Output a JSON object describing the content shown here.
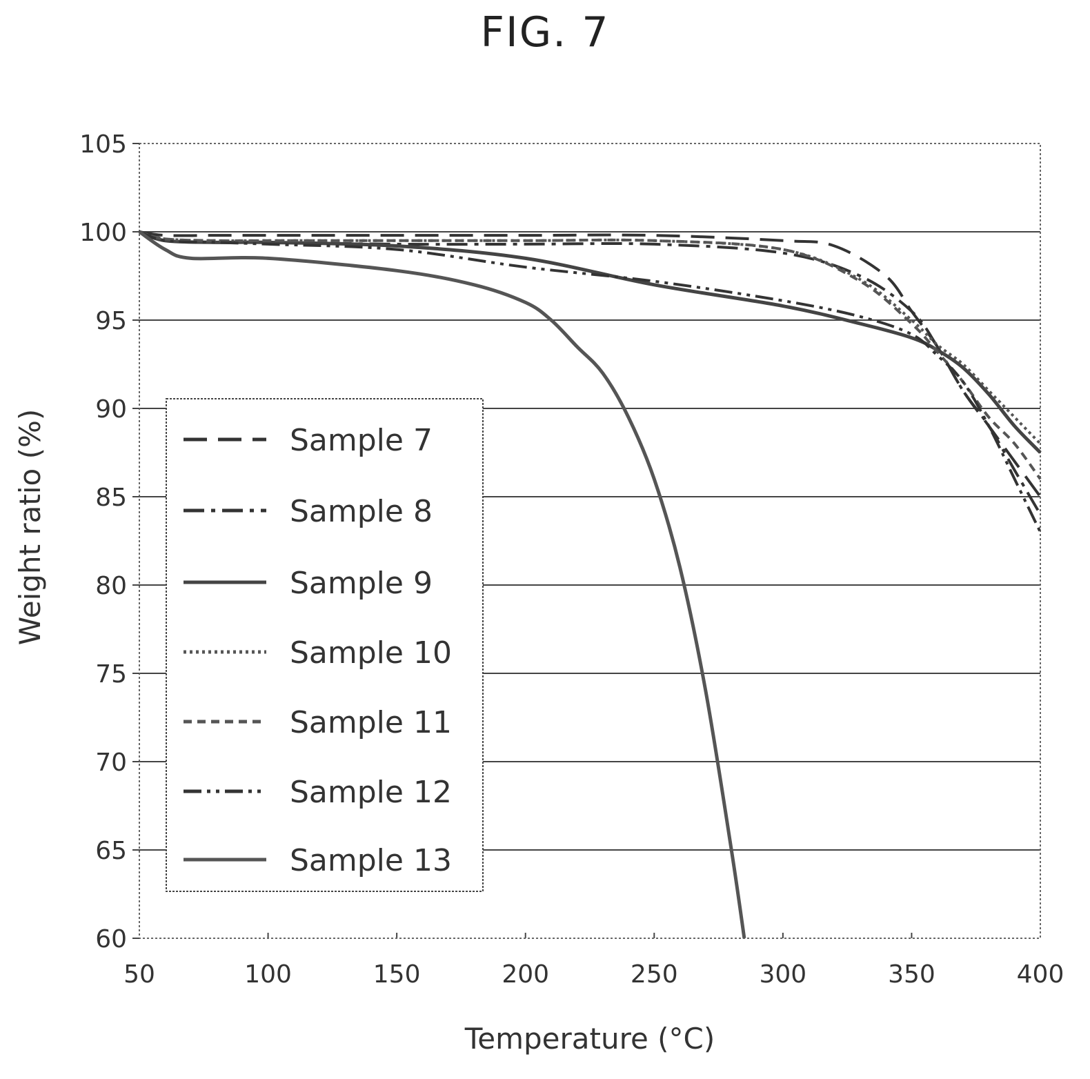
{
  "figure_label": "FIG. 7",
  "chart_data": {
    "type": "line",
    "title": "",
    "xlabel": "Temperature (°C)",
    "ylabel": "Weight ratio (%)",
    "xlim": [
      50,
      400
    ],
    "ylim": [
      60,
      105
    ],
    "xticks": [
      50,
      100,
      150,
      200,
      250,
      300,
      350,
      400
    ],
    "yticks": [
      60,
      65,
      70,
      75,
      80,
      85,
      90,
      95,
      100,
      105
    ],
    "grid": "horizontal",
    "legend_position": "left",
    "series": [
      {
        "name": "Sample 7",
        "dash": "dashed",
        "color": "#333333",
        "x": [
          50,
          60,
          80,
          100,
          150,
          200,
          250,
          300,
          320,
          340,
          350,
          360,
          370,
          380,
          390,
          400
        ],
        "y": [
          100,
          99.8,
          99.8,
          99.8,
          99.8,
          99.8,
          99.8,
          99.5,
          99.2,
          97.5,
          95.5,
          93.5,
          91,
          89,
          87,
          85
        ]
      },
      {
        "name": "Sample 8",
        "dash": "dashdot",
        "color": "#333333",
        "x": [
          50,
          60,
          80,
          100,
          150,
          200,
          250,
          300,
          330,
          350,
          360,
          370,
          380,
          390,
          400
        ],
        "y": [
          100,
          99.5,
          99.4,
          99.4,
          99.3,
          99.3,
          99.3,
          98.8,
          97.5,
          95.5,
          93.5,
          91,
          89,
          86.5,
          84
        ]
      },
      {
        "name": "Sample 9",
        "dash": "solid",
        "color": "#444444",
        "x": [
          50,
          60,
          80,
          100,
          150,
          200,
          250,
          300,
          330,
          350,
          360,
          370,
          380,
          390,
          400
        ],
        "y": [
          100,
          99.5,
          99.4,
          99.4,
          99.2,
          98.5,
          97,
          95.8,
          94.8,
          94,
          93.3,
          92.3,
          90.8,
          89,
          87.5
        ]
      },
      {
        "name": "Sample 10",
        "dash": "dotted",
        "color": "#555555",
        "x": [
          50,
          60,
          80,
          100,
          150,
          200,
          250,
          300,
          330,
          350,
          360,
          370,
          380,
          390,
          400
        ],
        "y": [
          100,
          99.6,
          99.5,
          99.5,
          99.5,
          99.5,
          99.5,
          99,
          97.3,
          95,
          93.6,
          92.5,
          91,
          89.5,
          88
        ]
      },
      {
        "name": "Sample 11",
        "dash": "shortdash",
        "color": "#555555",
        "x": [
          50,
          60,
          80,
          100,
          150,
          200,
          250,
          300,
          330,
          350,
          360,
          370,
          380,
          390,
          400
        ],
        "y": [
          100,
          99.6,
          99.5,
          99.5,
          99.5,
          99.5,
          99.5,
          99,
          97.2,
          94.8,
          93.2,
          91.5,
          89.5,
          88,
          86
        ]
      },
      {
        "name": "Sample 12",
        "dash": "dashdotdot",
        "color": "#333333",
        "x": [
          50,
          60,
          80,
          100,
          150,
          200,
          250,
          300,
          330,
          350,
          360,
          370,
          380,
          390,
          400
        ],
        "y": [
          100,
          99.5,
          99.4,
          99.3,
          99,
          98,
          97.2,
          96.1,
          95.2,
          94.2,
          93,
          91.5,
          89,
          86,
          83
        ]
      },
      {
        "name": "Sample 13",
        "dash": "solid",
        "color": "#555555",
        "x": [
          50,
          60,
          70,
          100,
          150,
          180,
          200,
          210,
          220,
          230,
          240,
          250,
          260,
          270,
          280,
          285
        ],
        "y": [
          100,
          99,
          98.5,
          98.5,
          97.8,
          97,
          96,
          95,
          93.5,
          92,
          89.5,
          86,
          81,
          74,
          65,
          60
        ]
      }
    ]
  }
}
